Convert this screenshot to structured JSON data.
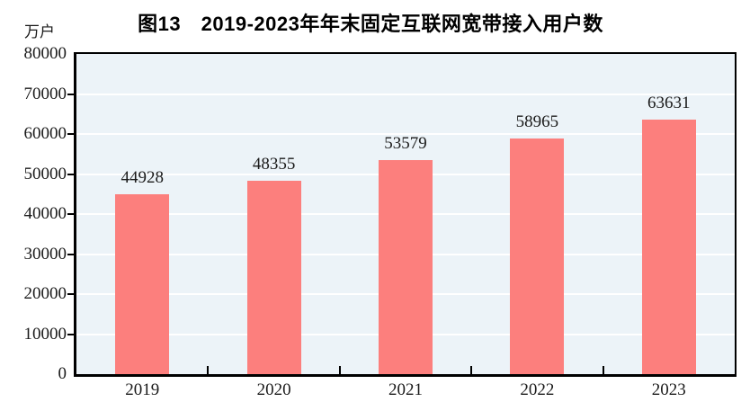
{
  "figure": {
    "title": "图13　2019-2023年年末固定互联网宽带接入用户数",
    "unit_label": "万户"
  },
  "chart_data": {
    "type": "bar",
    "title": "图13　2019-2023年年末固定互联网宽带接入用户数",
    "xlabel": "",
    "ylabel": "万户",
    "categories": [
      "2019",
      "2020",
      "2021",
      "2022",
      "2023"
    ],
    "values": [
      44928,
      48355,
      53579,
      58965,
      63631
    ],
    "ylim": [
      0,
      80000
    ],
    "yticks": [
      0,
      10000,
      20000,
      30000,
      40000,
      50000,
      60000,
      70000,
      80000
    ],
    "grid": true,
    "legend": "none",
    "colors": {
      "bar": "#FC7F7D",
      "plot_background": "#ECF3F8",
      "gridline": "#FFFFFF",
      "axis": "#000000",
      "text": "#1A1A1A"
    }
  }
}
